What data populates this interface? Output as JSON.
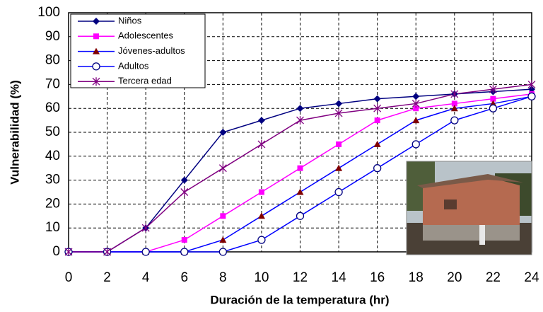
{
  "chart_data": {
    "type": "line",
    "x_label": "Duración de la temperatura (hr)",
    "y_label": "Vulnerabilidad (%)",
    "x": [
      0,
      2,
      4,
      6,
      8,
      10,
      12,
      14,
      16,
      18,
      20,
      22,
      24
    ],
    "xlim": [
      0,
      24
    ],
    "xticks": [
      0,
      2,
      4,
      6,
      8,
      10,
      12,
      14,
      16,
      18,
      20,
      22,
      24
    ],
    "ylim": [
      0,
      100
    ],
    "yticks": [
      0,
      10,
      20,
      30,
      40,
      50,
      60,
      70,
      80,
      90,
      100
    ],
    "grid": true,
    "legend": "upper left",
    "series": [
      {
        "name": "Niños",
        "color": "#000080",
        "marker": "diamond",
        "marker_color": "#000080",
        "values": [
          0,
          0,
          10,
          30,
          50,
          55,
          60,
          62,
          64,
          65,
          66,
          67,
          68
        ]
      },
      {
        "name": "Adolescentes",
        "color": "#ff00ff",
        "marker": "square",
        "marker_color": "#ff00ff",
        "values": [
          0,
          0,
          0,
          5,
          15,
          25,
          35,
          45,
          55,
          60,
          62,
          64,
          66
        ]
      },
      {
        "name": "Jóvenes-adultos",
        "color": "#0000ff",
        "marker": "triangle",
        "marker_color": "#800000",
        "values": [
          0,
          0,
          0,
          0,
          5,
          15,
          25,
          35,
          45,
          55,
          60,
          62,
          65
        ]
      },
      {
        "name": "Adultos",
        "color": "#0000ff",
        "marker": "circle",
        "marker_color": "#000080",
        "values": [
          0,
          0,
          0,
          0,
          0,
          5,
          15,
          25,
          35,
          45,
          55,
          60,
          65
        ]
      },
      {
        "name": "Tercera edad",
        "color": "#800080",
        "marker": "star",
        "marker_color": "#800080",
        "values": [
          0,
          0,
          10,
          25,
          35,
          45,
          55,
          58,
          60,
          62,
          66,
          68,
          70
        ]
      }
    ]
  }
}
